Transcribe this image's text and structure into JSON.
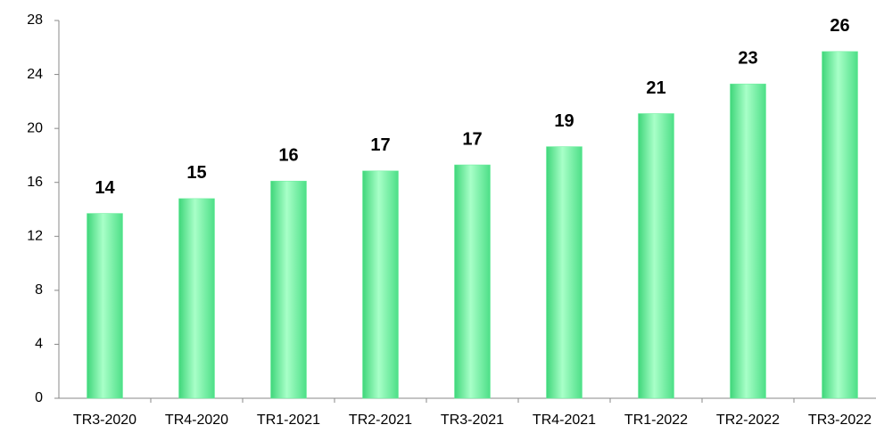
{
  "chart_data": {
    "type": "bar",
    "categories": [
      "TR3-2020",
      "TR4-2020",
      "TR1-2021",
      "TR2-2021",
      "TR3-2021",
      "TR4-2021",
      "TR1-2022",
      "TR2-2022",
      "TR3-2022"
    ],
    "values": [
      13.7,
      14.8,
      16.1,
      16.85,
      17.3,
      18.65,
      21.1,
      23.3,
      25.7
    ],
    "value_labels": [
      "14",
      "15",
      "16",
      "17",
      "17",
      "19",
      "21",
      "23",
      "26"
    ],
    "color": "#66ee99",
    "ylim": [
      0,
      28
    ],
    "yticks": [
      0,
      4,
      8,
      12,
      16,
      20,
      24,
      28
    ],
    "grid": false
  }
}
